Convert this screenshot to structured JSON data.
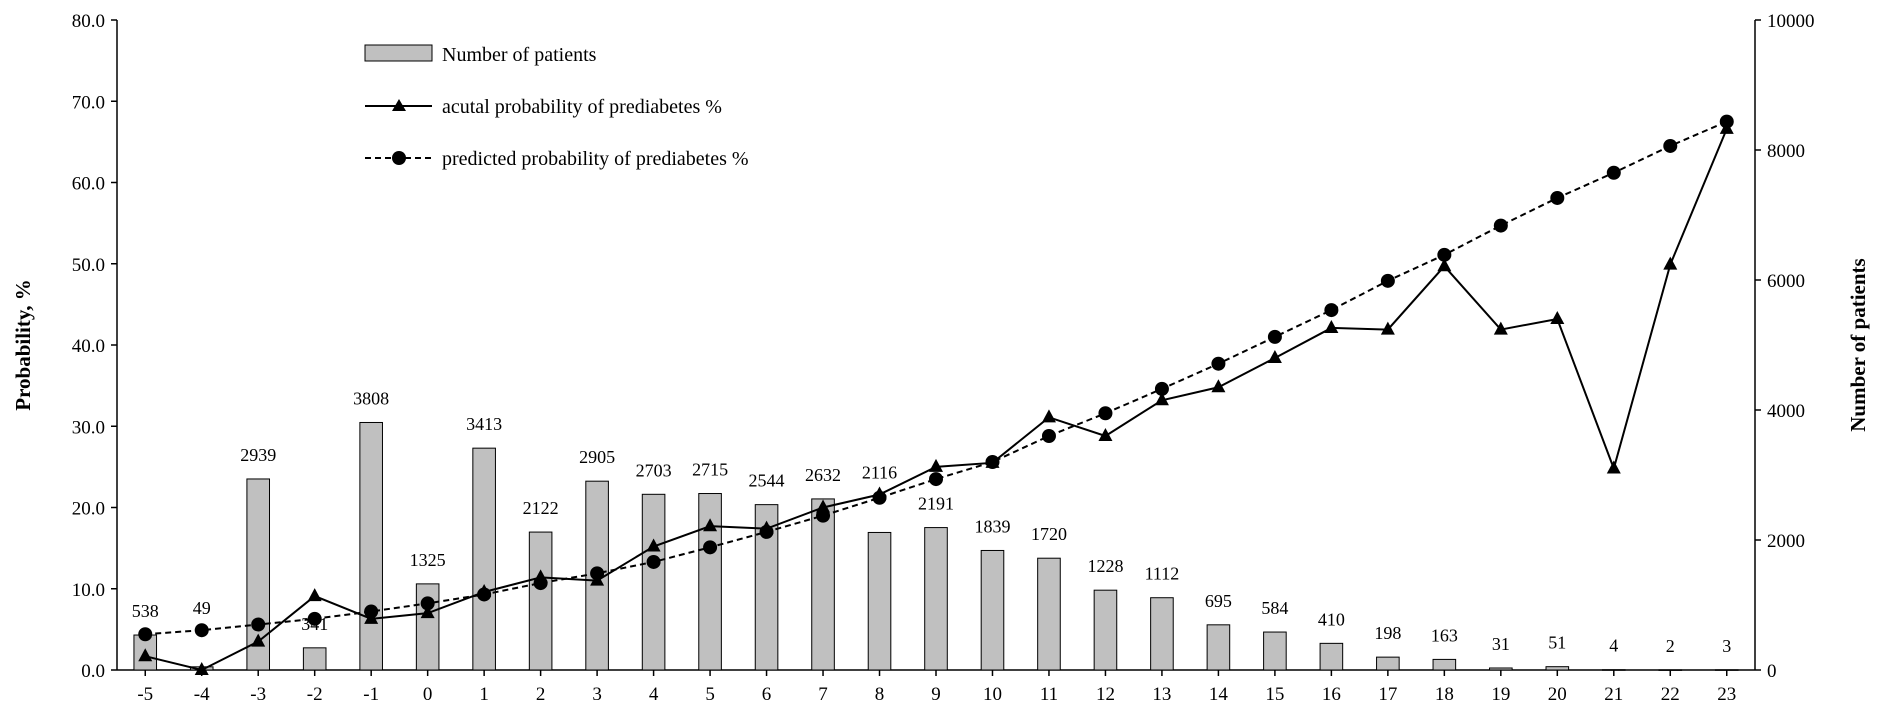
{
  "chart_data": {
    "type": "bar",
    "x": [
      -5,
      -4,
      -3,
      -2,
      -1,
      0,
      1,
      2,
      3,
      4,
      5,
      6,
      7,
      8,
      9,
      10,
      11,
      12,
      13,
      14,
      15,
      16,
      17,
      18,
      19,
      20,
      21,
      22,
      23
    ],
    "x_tick_labels": [
      "-5",
      "-4",
      "-3",
      "-2",
      "-1",
      "0",
      "1",
      "2",
      "3",
      "4",
      "5",
      "6",
      "7",
      "8",
      "9",
      "10",
      "11",
      "12",
      "13",
      "14",
      "15",
      "16",
      "17",
      "18",
      "19",
      "20",
      "21",
      "22",
      "23"
    ],
    "ylabel": "Probability, %",
    "ylim": [
      0,
      80
    ],
    "y_tick_labels": [
      "0.0",
      "10.0",
      "20.0",
      "30.0",
      "40.0",
      "50.0",
      "60.0",
      "70.0",
      "80.0"
    ],
    "y2label": "Number of patients",
    "y2lim": [
      0,
      10000
    ],
    "y2_tick_labels": [
      "0",
      "2000",
      "4000",
      "6000",
      "8000",
      "10000"
    ],
    "grid": false,
    "legend_position": "top-left",
    "series": [
      {
        "name": "Number of patients",
        "type": "bar",
        "axis": "right",
        "color": "#c0c0c0",
        "values": [
          538,
          49,
          2939,
          341,
          3808,
          1325,
          3413,
          2122,
          2905,
          2703,
          2715,
          2544,
          2632,
          2116,
          2191,
          1839,
          1720,
          1228,
          1112,
          695,
          584,
          410,
          198,
          163,
          31,
          51,
          4,
          2,
          3
        ],
        "data_labels": [
          "538",
          "49",
          "2939",
          "341",
          "3808",
          "1325",
          "3413",
          "2122",
          "2905",
          "2703",
          "2715",
          "2544",
          "2632",
          "2116",
          "2191",
          "1839",
          "1720",
          "1228",
          "1112",
          "695",
          "584",
          "410",
          "198",
          "163",
          "31",
          "51",
          "4",
          "2",
          "3"
        ]
      },
      {
        "name": "acutal probability of prediabetes %",
        "type": "line",
        "axis": "left",
        "marker": "triangle",
        "line_style": "solid",
        "color": "#000000",
        "values": [
          1.7,
          0.0,
          3.5,
          9.1,
          6.3,
          7.0,
          9.6,
          11.4,
          11.0,
          15.2,
          17.7,
          17.4,
          20.0,
          21.6,
          25.0,
          25.5,
          31.1,
          28.8,
          33.2,
          34.8,
          38.4,
          42.1,
          41.9,
          49.7,
          41.9,
          43.2,
          24.8,
          49.9,
          66.6
        ]
      },
      {
        "name": "predicted probability of prediabetes %",
        "type": "line",
        "axis": "left",
        "marker": "circle",
        "line_style": "dashed",
        "color": "#000000",
        "values": [
          4.4,
          4.9,
          5.6,
          6.3,
          7.2,
          8.2,
          9.3,
          10.7,
          11.9,
          13.3,
          15.1,
          17.0,
          19.0,
          21.2,
          23.5,
          25.6,
          28.8,
          31.6,
          34.6,
          37.7,
          41.0,
          44.3,
          47.9,
          51.1,
          54.7,
          58.1,
          61.2,
          64.5,
          67.5
        ]
      }
    ]
  }
}
